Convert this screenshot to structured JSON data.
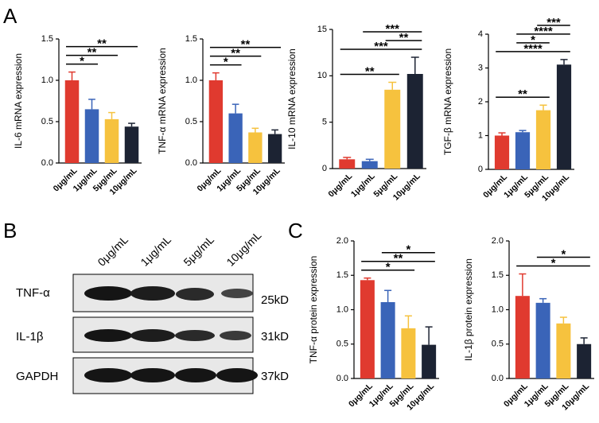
{
  "panel_labels": [
    "A",
    "B",
    "C"
  ],
  "blot": {
    "lanes": [
      "0μg/mL",
      "1μg/mL",
      "5μg/mL",
      "10μg/mL"
    ],
    "rows": [
      {
        "label": "TNF-α",
        "size": "25kD"
      },
      {
        "label": "IL-1β",
        "size": "31kD"
      },
      {
        "label": "GAPDH",
        "size": "37kD"
      }
    ]
  },
  "chart_data": [
    {
      "type": "bar",
      "ylabel": "IL-6 mRNA expression",
      "categories": [
        "0μg/mL",
        "1μg/mL",
        "5μg/mL",
        "10μg/mL"
      ],
      "values": [
        1.0,
        0.65,
        0.53,
        0.44
      ],
      "errors": [
        0.1,
        0.12,
        0.08,
        0.04
      ],
      "colors": [
        "#e03a2f",
        "#3a64b8",
        "#f6c23e",
        "#1c2333"
      ],
      "ylim": [
        0,
        1.5
      ],
      "yticks": [
        {
          "value": 0,
          "label": "0.0"
        },
        {
          "value": 0.5,
          "label": "0.5"
        },
        {
          "value": 1,
          "label": "1.0"
        },
        {
          "value": 1.5,
          "label": "1.5"
        }
      ],
      "significance": [
        {
          "from": 0,
          "to": 1,
          "label": "*"
        },
        {
          "from": 0,
          "to": 2,
          "label": "**"
        },
        {
          "from": 0,
          "to": 3,
          "label": "**"
        }
      ]
    },
    {
      "type": "bar",
      "ylabel": "TNF-α mRNA expression",
      "categories": [
        "0μg/mL",
        "1μg/mL",
        "5μg/mL",
        "10μg/mL"
      ],
      "values": [
        1.0,
        0.6,
        0.37,
        0.35
      ],
      "errors": [
        0.09,
        0.11,
        0.05,
        0.05
      ],
      "colors": [
        "#e03a2f",
        "#3a64b8",
        "#f6c23e",
        "#1c2333"
      ],
      "ylim": [
        0,
        1.5
      ],
      "yticks": [
        {
          "value": 0,
          "label": "0.0"
        },
        {
          "value": 0.5,
          "label": "0.5"
        },
        {
          "value": 1,
          "label": "1.0"
        },
        {
          "value": 1.5,
          "label": "1.5"
        }
      ],
      "significance": [
        {
          "from": 0,
          "to": 1,
          "label": "*"
        },
        {
          "from": 0,
          "to": 2,
          "label": "**"
        },
        {
          "from": 0,
          "to": 3,
          "label": "**"
        }
      ]
    },
    {
      "type": "bar",
      "ylabel": "IL-10 mRNA expression",
      "categories": [
        "0μg/mL",
        "1μg/mL",
        "5μg/mL",
        "10μg/mL"
      ],
      "values": [
        1.0,
        0.8,
        8.5,
        10.2
      ],
      "errors": [
        0.2,
        0.2,
        0.8,
        1.8
      ],
      "colors": [
        "#e03a2f",
        "#3a64b8",
        "#f6c23e",
        "#1c2333"
      ],
      "ylim": [
        0,
        15
      ],
      "yticks": [
        0,
        5,
        10,
        15
      ],
      "significance": [
        {
          "from": 0,
          "to": 2,
          "label": "**"
        },
        {
          "from": 0,
          "to": 3,
          "label": "***"
        },
        {
          "from": 2,
          "to": 3,
          "label": "**"
        },
        {
          "from": 1,
          "to": 3,
          "label": "***"
        }
      ]
    },
    {
      "type": "bar",
      "ylabel": "TGF-β mRNA expression",
      "categories": [
        "0μg/mL",
        "1μg/mL",
        "5μg/mL",
        "10μg/mL"
      ],
      "values": [
        1.0,
        1.1,
        1.75,
        3.1
      ],
      "errors": [
        0.08,
        0.05,
        0.15,
        0.15
      ],
      "colors": [
        "#e03a2f",
        "#3a64b8",
        "#f6c23e",
        "#1c2333"
      ],
      "ylim": [
        0,
        4
      ],
      "yticks": [
        0,
        1,
        2,
        3,
        4
      ],
      "significance": [
        {
          "from": 0,
          "to": 2,
          "label": "**"
        },
        {
          "from": 0,
          "to": 3,
          "label": "****"
        },
        {
          "from": 1,
          "to": 2,
          "label": "*"
        },
        {
          "from": 1,
          "to": 3,
          "label": "****"
        },
        {
          "from": 2,
          "to": 3,
          "label": "***"
        }
      ]
    },
    {
      "type": "bar",
      "ylabel": "TNF-α protein expression",
      "categories": [
        "0μg/mL",
        "1μg/mL",
        "5μg/mL",
        "10μg/mL"
      ],
      "values": [
        1.43,
        1.11,
        0.73,
        0.49
      ],
      "errors": [
        0.03,
        0.17,
        0.18,
        0.26
      ],
      "colors": [
        "#e03a2f",
        "#3a64b8",
        "#f6c23e",
        "#1c2333"
      ],
      "ylim": [
        0,
        2
      ],
      "yticks": [
        {
          "value": 0,
          "label": "0.0"
        },
        {
          "value": 0.5,
          "label": "0.5"
        },
        {
          "value": 1,
          "label": "1.0"
        },
        {
          "value": 1.5,
          "label": "1.5"
        },
        {
          "value": 2,
          "label": "2.0"
        }
      ],
      "significance": [
        {
          "from": 0,
          "to": 2,
          "label": "*"
        },
        {
          "from": 0,
          "to": 3,
          "label": "**"
        },
        {
          "from": 1,
          "to": 3,
          "label": "*"
        }
      ]
    },
    {
      "type": "bar",
      "ylabel": "IL-1β protein expression",
      "categories": [
        "0μg/mL",
        "1μg/mL",
        "5μg/mL",
        "10μg/mL"
      ],
      "values": [
        1.2,
        1.1,
        0.8,
        0.5
      ],
      "errors": [
        0.32,
        0.06,
        0.09,
        0.09
      ],
      "colors": [
        "#e03a2f",
        "#3a64b8",
        "#f6c23e",
        "#1c2333"
      ],
      "ylim": [
        0,
        2
      ],
      "yticks": [
        {
          "value": 0,
          "label": "0.0"
        },
        {
          "value": 0.5,
          "label": "0.5"
        },
        {
          "value": 1,
          "label": "1.0"
        },
        {
          "value": 1.5,
          "label": "1.5"
        },
        {
          "value": 2,
          "label": "2.0"
        }
      ],
      "significance": [
        {
          "from": 0,
          "to": 3,
          "label": "*"
        },
        {
          "from": 1,
          "to": 3,
          "label": "*"
        }
      ]
    }
  ]
}
